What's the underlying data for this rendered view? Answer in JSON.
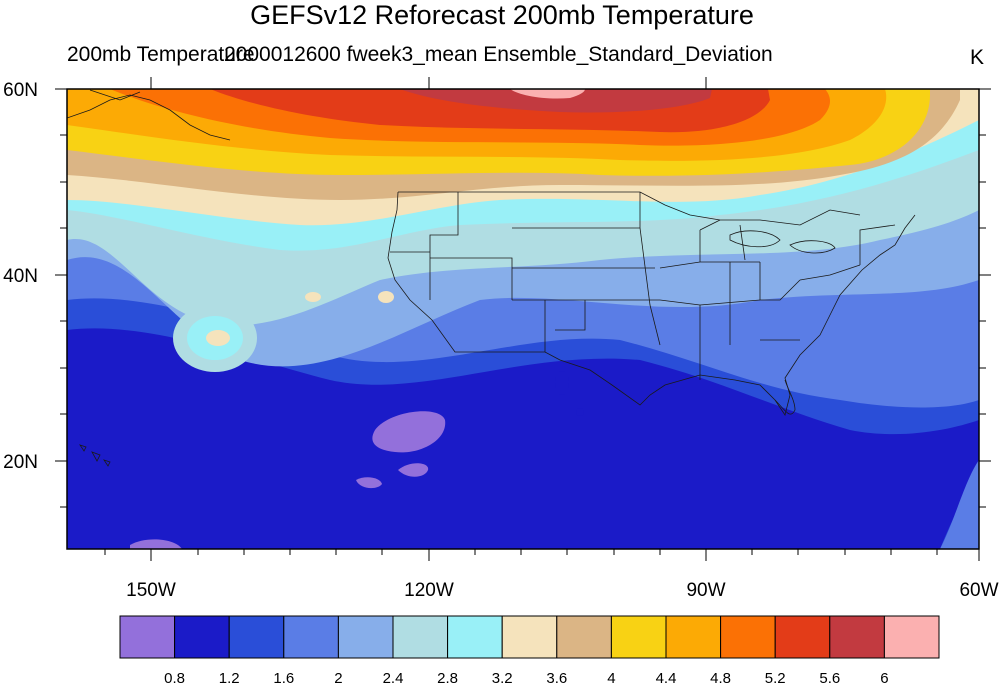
{
  "title": "GEFSv12 Reforecast 200mb Temperature",
  "left_string": "200mb Temperature",
  "center_string": "2000012600 fweek3_mean Ensemble_Standard_Deviation",
  "units": "K",
  "lat_labels": [
    "60N",
    "40N",
    "20N"
  ],
  "lon_labels": [
    "150W",
    "120W",
    "90W",
    "60W"
  ],
  "colorbar": {
    "colors": [
      "#9370db",
      "#1b1bc8",
      "#2a4ed8",
      "#5a7de6",
      "#87aeea",
      "#b0dde3",
      "#99f0f7",
      "#f5e3bc",
      "#dbb585",
      "#f8d214",
      "#fcaa05",
      "#fb7105",
      "#e33c18",
      "#c23a40",
      "#fbb0b0"
    ],
    "labels": [
      "0.8",
      "1.2",
      "1.6",
      "2",
      "2.4",
      "2.8",
      "3.2",
      "3.6",
      "4",
      "4.4",
      "4.8",
      "5.2",
      "5.6",
      "6"
    ]
  }
}
